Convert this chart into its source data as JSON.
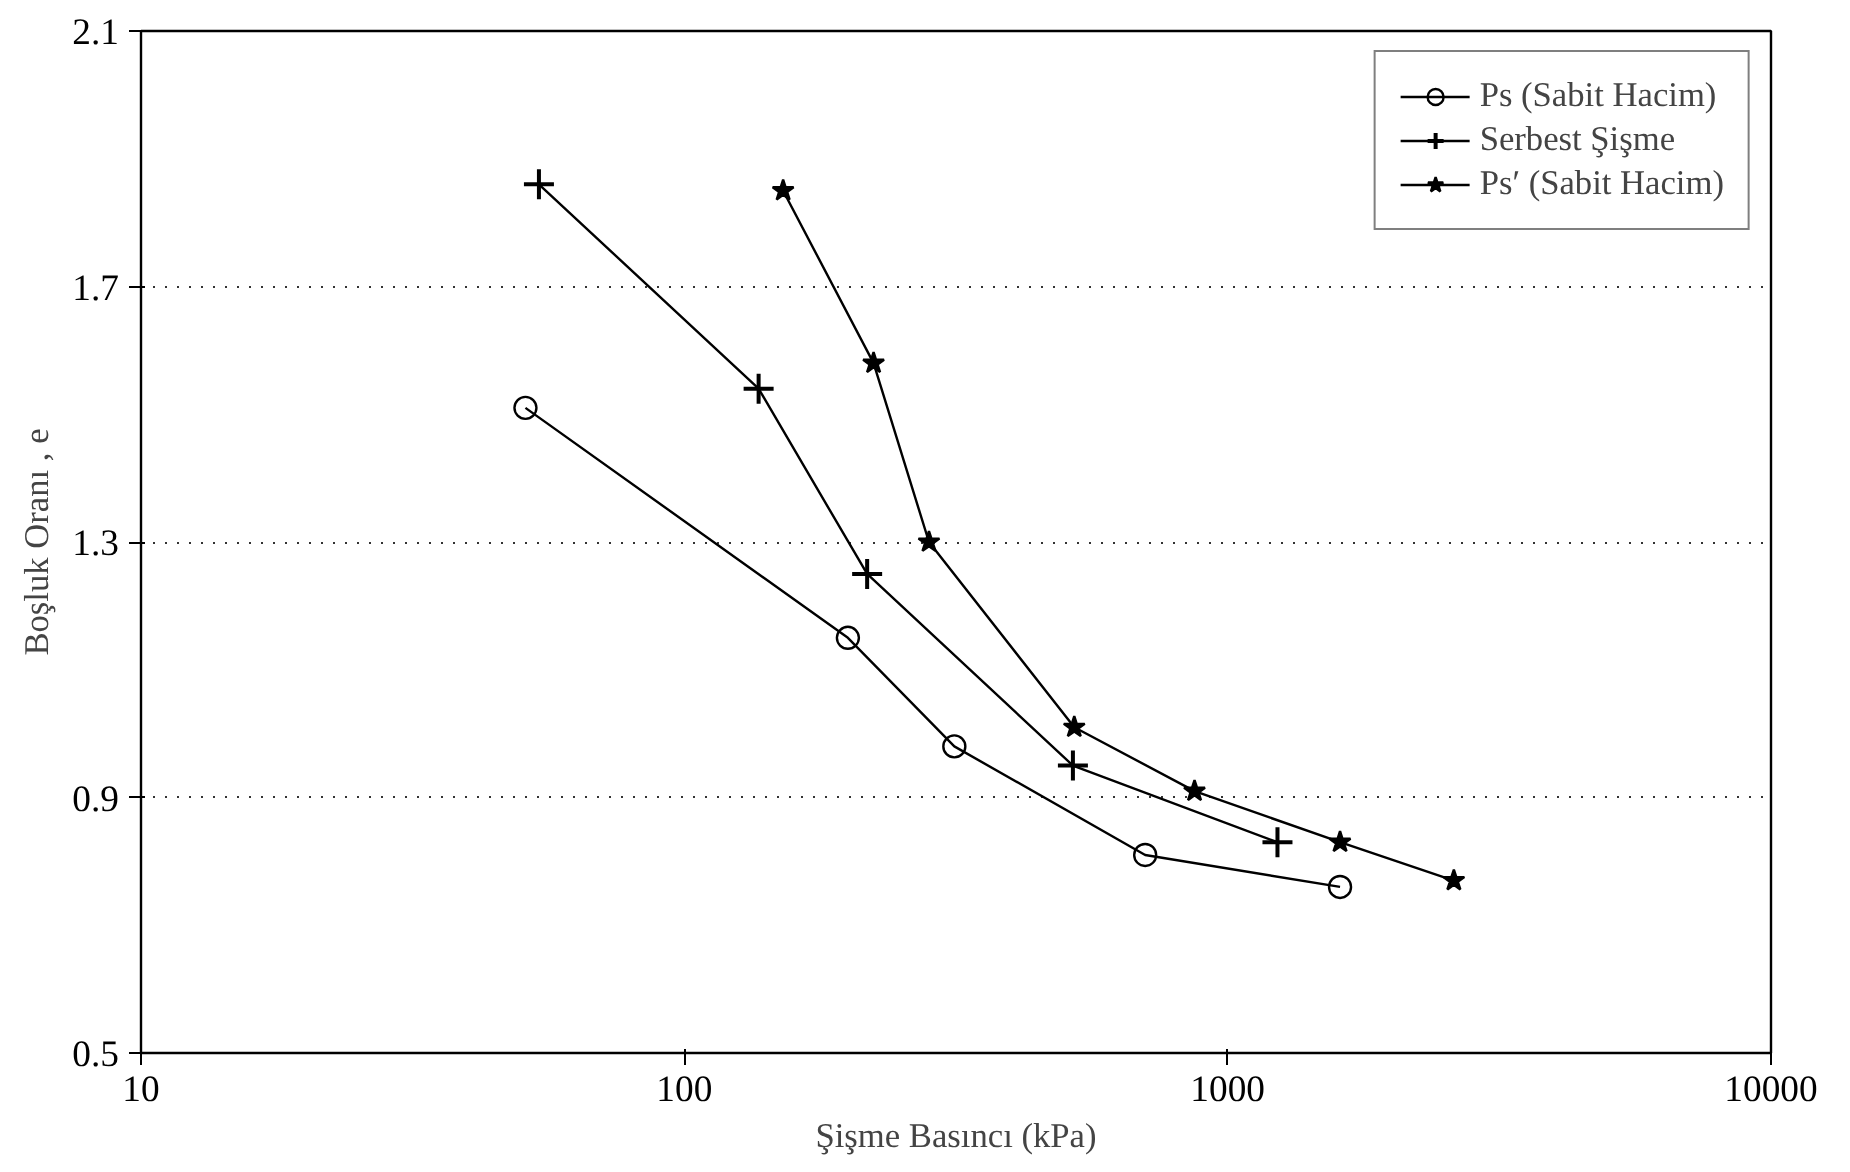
{
  "chart_data": {
    "type": "line",
    "xlabel": "Şişme Basıncı (kPa)",
    "ylabel": "Boşluk Oranı , e",
    "log": "x",
    "xlim": [
      10,
      10000
    ],
    "xticks": [
      10,
      100,
      1000,
      10000
    ],
    "ylim": [
      0.5,
      2.1
    ],
    "yticks": [
      0.5,
      0.9,
      1.3,
      1.7,
      2.1
    ],
    "grid": "y",
    "legend": "top right",
    "series": [
      {
        "name": "Ps (Sabit Hacim)",
        "color": "#000000",
        "marker": "circle",
        "x": [
          51,
          200,
          314,
          705,
          1610
        ],
        "values": [
          1.51,
          1.15,
          0.98,
          0.81,
          0.76
        ]
      },
      {
        "name": "Serbest Şişme",
        "color": "#000000",
        "marker": "cross",
        "x": [
          54,
          137,
          217,
          519,
          1235
        ],
        "values": [
          1.86,
          1.54,
          1.25,
          0.95,
          0.83
        ]
      },
      {
        "name": "Ps′ (Sabit Hacim)",
        "color": "#000000",
        "marker": "star",
        "x": [
          152,
          223,
          282,
          522,
          869,
          1610,
          2608
        ],
        "values": [
          1.85,
          1.58,
          1.3,
          1.01,
          0.91,
          0.83,
          0.77
        ]
      }
    ]
  }
}
